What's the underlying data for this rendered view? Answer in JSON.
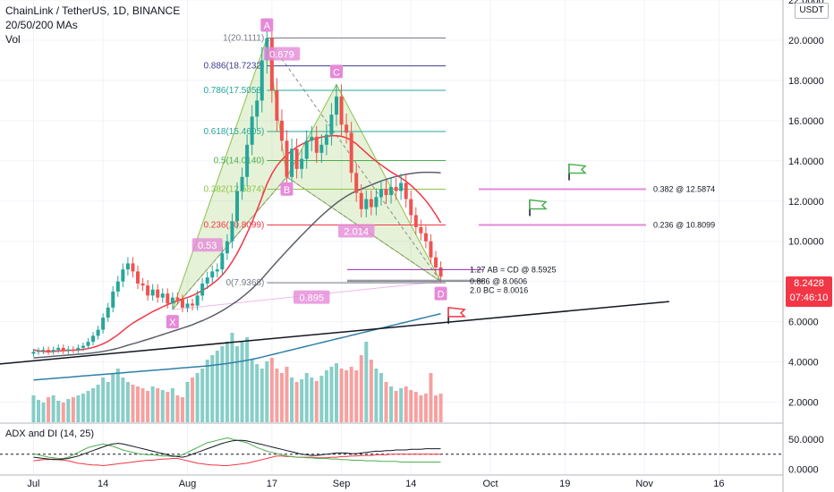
{
  "header": {
    "symbol_line": "ChainLink / TetherUS, 1D, BINANCE",
    "ma_line": "20/50/200 MAs",
    "vol_line": "Vol"
  },
  "currency": "USDT",
  "price_tag": {
    "value": "8.2428",
    "countdown": "07:46:10",
    "color": "#f23645"
  },
  "adx_label": "ADX and DI (14, 25)",
  "chart_data": {
    "type": "candlestick",
    "title": "ChainLink / TetherUS, 1D, BINANCE",
    "y_axis_ticks": [
      "22.0000",
      "20.0000",
      "18.0000",
      "16.0000",
      "14.0000",
      "12.0000",
      "10.0000",
      "8.0000",
      "6.0000",
      "4.0000",
      "2.0000"
    ],
    "y_tick_values": [
      22,
      20,
      18,
      16,
      14,
      12,
      10,
      8,
      6,
      4,
      2
    ],
    "ylim": [
      1.0,
      22.0
    ],
    "x_ticks": [
      "Jul",
      "14",
      "Aug",
      "17",
      "Sep",
      "14",
      "Oct",
      "19",
      "Nov",
      "16"
    ],
    "x_tick_days": [
      0,
      14,
      31,
      48,
      62,
      76,
      92,
      107,
      123,
      138
    ],
    "adx_ticks": [
      "50.0000",
      "0.0000"
    ],
    "adx_tick_values": [
      50,
      0
    ],
    "adx_ylim": [
      -8,
      72
    ],
    "candles_close": [
      4.5,
      4.55,
      4.6,
      4.52,
      4.6,
      4.7,
      4.55,
      4.62,
      4.6,
      4.7,
      4.8,
      5.0,
      5.3,
      5.6,
      6.2,
      6.7,
      7.5,
      8.0,
      8.6,
      8.9,
      8.5,
      7.9,
      7.8,
      7.3,
      7.6,
      7.2,
      7.4,
      6.9,
      7.2,
      7.1,
      6.7,
      6.9,
      6.8,
      7.3,
      7.9,
      8.2,
      8.5,
      8.6,
      9.4,
      10.0,
      11.0,
      12.5,
      13.2,
      14.8,
      16.2,
      17.0,
      19.0,
      20.1,
      17.5,
      16.0,
      15.0,
      13.2,
      14.6,
      13.6,
      14.1,
      15.0,
      15.2,
      14.4,
      14.8,
      15.3,
      16.3,
      17.2,
      15.8,
      15.4,
      13.4,
      12.4,
      11.6,
      12.1,
      11.7,
      12.2,
      12.6,
      12.3,
      12.7,
      12.5,
      12.9,
      12.1,
      11.3,
      10.7,
      10.4,
      10.0,
      9.2,
      8.7,
      8.24
    ],
    "ma20": [
      4.6,
      4.55,
      4.52,
      4.5,
      4.52,
      4.55,
      4.56,
      4.57,
      4.58,
      4.6,
      4.62,
      4.66,
      4.72,
      4.8,
      4.9,
      5.02,
      5.18,
      5.35,
      5.55,
      5.75,
      5.93,
      6.08,
      6.22,
      6.36,
      6.5,
      6.62,
      6.74,
      6.85,
      6.95,
      7.05,
      7.12,
      7.2,
      7.3,
      7.42,
      7.55,
      7.7,
      7.88,
      8.08,
      8.32,
      8.62,
      8.98,
      9.4,
      9.88,
      10.4,
      10.95,
      11.55,
      12.2,
      12.85,
      13.35,
      13.75,
      14.05,
      14.3,
      14.5,
      14.68,
      14.82,
      14.95,
      15.05,
      15.12,
      15.18,
      15.22,
      15.25,
      15.25,
      15.22,
      15.15,
      15.02,
      14.85,
      14.62,
      14.4,
      14.18,
      13.98,
      13.8,
      13.62,
      13.45,
      13.3,
      13.15,
      12.98,
      12.78,
      12.55,
      12.3,
      12.02,
      11.7,
      11.32,
      10.92
    ],
    "ma50": [
      4.2,
      4.22,
      4.24,
      4.26,
      4.28,
      4.3,
      4.32,
      4.34,
      4.36,
      4.38,
      4.4,
      4.42,
      4.45,
      4.48,
      4.52,
      4.57,
      4.62,
      4.68,
      4.75,
      4.83,
      4.9,
      4.97,
      5.05,
      5.12,
      5.2,
      5.28,
      5.36,
      5.44,
      5.52,
      5.6,
      5.68,
      5.76,
      5.85,
      5.95,
      6.05,
      6.16,
      6.28,
      6.41,
      6.55,
      6.7,
      6.86,
      7.03,
      7.22,
      7.42,
      7.64,
      7.88,
      8.14,
      8.42,
      8.7,
      8.98,
      9.25,
      9.52,
      9.78,
      10.04,
      10.3,
      10.55,
      10.8,
      11.04,
      11.27,
      11.49,
      11.7,
      11.9,
      12.08,
      12.24,
      12.38,
      12.5,
      12.6,
      12.7,
      12.8,
      12.9,
      13.0,
      13.08,
      13.15,
      13.22,
      13.28,
      13.33,
      13.37,
      13.4,
      13.42,
      13.43,
      13.43,
      13.42,
      13.4
    ],
    "ma200": [
      3.1,
      3.12,
      3.14,
      3.16,
      3.18,
      3.2,
      3.22,
      3.24,
      3.26,
      3.28,
      3.3,
      3.32,
      3.34,
      3.36,
      3.38,
      3.4,
      3.42,
      3.44,
      3.46,
      3.48,
      3.5,
      3.52,
      3.54,
      3.56,
      3.58,
      3.6,
      3.62,
      3.64,
      3.66,
      3.68,
      3.7,
      3.72,
      3.74,
      3.76,
      3.78,
      3.8,
      3.83,
      3.86,
      3.89,
      3.92,
      3.96,
      4.0,
      4.04,
      4.08,
      4.13,
      4.18,
      4.24,
      4.3,
      4.36,
      4.42,
      4.48,
      4.54,
      4.6,
      4.66,
      4.72,
      4.78,
      4.84,
      4.9,
      4.96,
      5.02,
      5.08,
      5.14,
      5.2,
      5.26,
      5.32,
      5.38,
      5.44,
      5.5,
      5.56,
      5.62,
      5.68,
      5.74,
      5.8,
      5.86,
      5.92,
      5.98,
      6.04,
      6.1,
      6.16,
      6.22,
      6.28,
      6.34,
      6.4
    ],
    "volume_rel": [
      0.3,
      0.25,
      0.22,
      0.28,
      0.3,
      0.24,
      0.22,
      0.26,
      0.28,
      0.3,
      0.32,
      0.35,
      0.38,
      0.42,
      0.5,
      0.45,
      0.55,
      0.6,
      0.5,
      0.45,
      0.42,
      0.4,
      0.38,
      0.35,
      0.4,
      0.38,
      0.36,
      0.34,
      0.38,
      0.3,
      0.28,
      0.45,
      0.5,
      0.55,
      0.6,
      0.7,
      0.75,
      0.8,
      0.85,
      0.9,
      1.0,
      0.85,
      0.9,
      0.95,
      0.7,
      0.65,
      0.6,
      0.68,
      0.72,
      0.6,
      0.55,
      0.62,
      0.5,
      0.45,
      0.48,
      0.55,
      0.5,
      0.46,
      0.52,
      0.58,
      0.62,
      0.66,
      0.6,
      0.58,
      0.62,
      0.58,
      0.75,
      0.9,
      0.7,
      0.6,
      0.55,
      0.45,
      0.4,
      0.35,
      0.38,
      0.4,
      0.36,
      0.34,
      0.3,
      0.32,
      0.55,
      0.3,
      0.32
    ],
    "adx_line": [
      20,
      19,
      18,
      17,
      16,
      16,
      17,
      18,
      20,
      22,
      25,
      28,
      31,
      34,
      37,
      40,
      42,
      43,
      42,
      40,
      38,
      36,
      34,
      32,
      30,
      28,
      26,
      24,
      22,
      21,
      20,
      22,
      25,
      28,
      31,
      34,
      37,
      40,
      43,
      45,
      47,
      48,
      48,
      47,
      45,
      43,
      41,
      39,
      37,
      35,
      33,
      31,
      29,
      27,
      25,
      24,
      23,
      23,
      24,
      25,
      26,
      27,
      27,
      27,
      26,
      26,
      27,
      28,
      29,
      30,
      30,
      31,
      31,
      32,
      32,
      32,
      33,
      33,
      33,
      34,
      34,
      34,
      34
    ],
    "plus_di": [
      26,
      24,
      22,
      20,
      19,
      18,
      18,
      20,
      24,
      28,
      32,
      36,
      38,
      40,
      42,
      40,
      38,
      35,
      32,
      30,
      28,
      26,
      25,
      24,
      24,
      23,
      22,
      22,
      21,
      22,
      24,
      28,
      32,
      36,
      40,
      44,
      46,
      48,
      50,
      52,
      50,
      48,
      46,
      44,
      40,
      36,
      33,
      30,
      28,
      26,
      24,
      22,
      21,
      20,
      20,
      19,
      19,
      18,
      18,
      18,
      17,
      17,
      16,
      16,
      15,
      15,
      15,
      14,
      14,
      14,
      13,
      13,
      13,
      13,
      12,
      12,
      12,
      12,
      12,
      12,
      12,
      12,
      12
    ],
    "minus_di": [
      14,
      15,
      16,
      16,
      17,
      16,
      15,
      14,
      12,
      10,
      9,
      8,
      7,
      7,
      6,
      7,
      8,
      9,
      10,
      11,
      12,
      13,
      14,
      15,
      15,
      16,
      17,
      17,
      18,
      18,
      16,
      14,
      12,
      10,
      9,
      8,
      7,
      7,
      6,
      6,
      7,
      8,
      9,
      10,
      12,
      14,
      16,
      18,
      20,
      22,
      22,
      21,
      21,
      20,
      20,
      20,
      20,
      19,
      19,
      19,
      20,
      20,
      21,
      21,
      22,
      22,
      23,
      23,
      23,
      24,
      24,
      24,
      25,
      25,
      25,
      25,
      25,
      25,
      25,
      25,
      25,
      25,
      25
    ],
    "adx_threshold": 25
  },
  "pattern": {
    "points": [
      {
        "label": "X",
        "day": 28,
        "price": 6.6
      },
      {
        "label": "A",
        "day": 47,
        "price": 20.11
      },
      {
        "label": "B",
        "day": 51,
        "price": 13.2
      },
      {
        "label": "C",
        "day": 61,
        "price": 17.8
      },
      {
        "label": "D",
        "day": 82,
        "price": 8.0
      }
    ],
    "ratios": [
      {
        "text": "0.679",
        "day": 50,
        "price": 19.3
      },
      {
        "text": "0.53",
        "day": 35,
        "price": 9.8
      },
      {
        "text": "2.014",
        "day": 65,
        "price": 10.5
      },
      {
        "text": "0.895",
        "day": 56,
        "price": 7.2
      }
    ],
    "fib_levels": [
      {
        "text": "1(20.1111)",
        "price": 20.1111,
        "color": "#787b86"
      },
      {
        "text": "0.886(18.7232)",
        "price": 18.7232,
        "color": "#3b3b8f"
      },
      {
        "text": "0.786(17.5058)",
        "price": 17.5058,
        "color": "#26a69a"
      },
      {
        "text": "0.618(15.4605)",
        "price": 15.4605,
        "color": "#26a69a"
      },
      {
        "text": "0.5(14.0140)",
        "price": 14.014,
        "color": "#4caf50"
      },
      {
        "text": "0.382(12.5874)",
        "price": 12.5874,
        "color": "#8bc34a"
      },
      {
        "text": "0.236(10.8099)",
        "price": 10.8099,
        "color": "#f23645"
      },
      {
        "text": "0(7.9368)",
        "price": 7.9368,
        "color": "#787b86"
      }
    ],
    "targets": [
      {
        "text": "0.382 @ 12.5874",
        "price": 12.5874
      },
      {
        "text": "0.236 @ 10.8099",
        "price": 10.8099
      }
    ],
    "projection_notes": [
      {
        "text": "1.27 AB = CD @ 8.5925",
        "price": 8.5925
      },
      {
        "text": "0.886 @ 8.0606",
        "price": 8.0606
      },
      {
        "text": "2.0 BC = 8.0016",
        "price": 8.0016
      }
    ]
  },
  "colors": {
    "up": "#26a69a",
    "down": "#ef5350",
    "ma20": "#f23645",
    "ma50": "#5d606b",
    "ma200": "#2f7fa8",
    "trend": "#131722",
    "pattern": "#8bc34a",
    "tag": "#e58ad8",
    "plus_di": "#4caf50",
    "minus_di": "#f23645",
    "adx": "#131722"
  }
}
